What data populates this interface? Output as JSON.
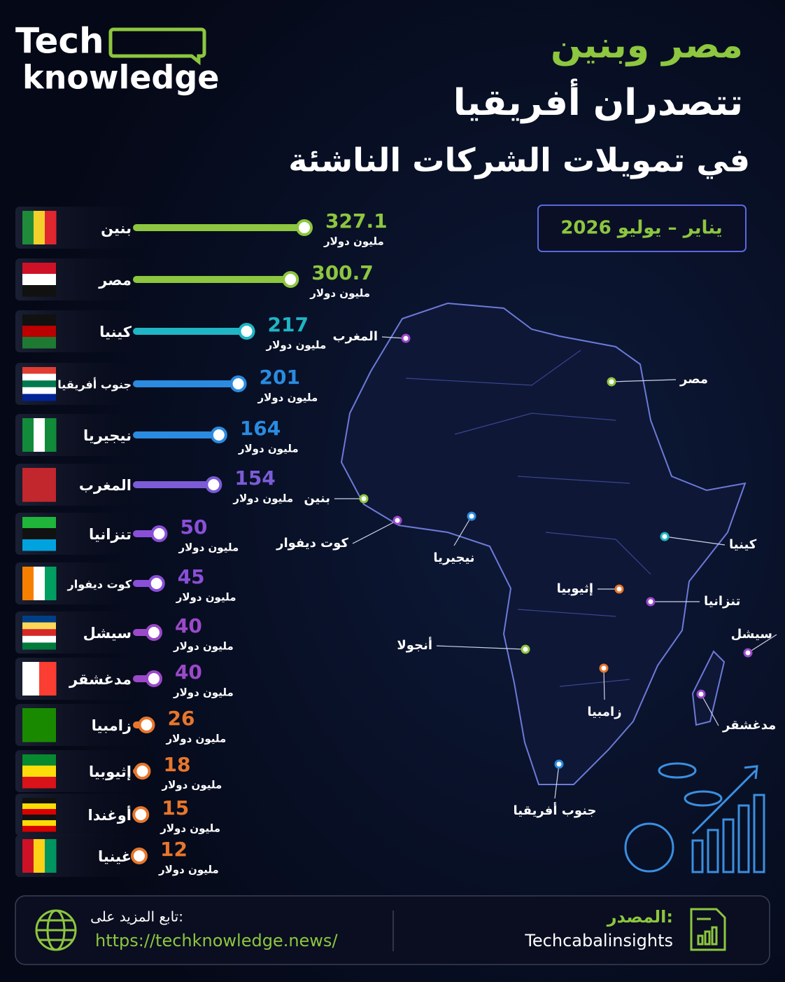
{
  "chart_data": {
    "type": "lollipop",
    "logo": [
      "Tech",
      "knowledge"
    ],
    "title": [
      "مصر وبنين",
      "تتصدران أفريقيا",
      "في تمويلات الشركات الناشئة"
    ],
    "period": "يناير – يوليو 2026",
    "unit_label": "مليون دولار",
    "categories": [
      "بنين",
      "مصر",
      "كينيا",
      "جنوب أفريقيا",
      "نيجيريا",
      "المغرب",
      "تنزانيا",
      "كوت ديفوار",
      "سيشل",
      "مدغشقر",
      "زامبيا",
      "إثيوبيا",
      "أوغندا",
      "غينيا"
    ],
    "values": [
      327.1,
      300.7,
      217,
      201,
      164,
      154,
      50,
      45,
      40,
      40,
      26,
      18,
      15,
      12
    ],
    "colors": [
      "#8dc63f",
      "#8dc63f",
      "#1fb5c4",
      "#2a8be0",
      "#2a8be0",
      "#7b5cd6",
      "#8a4fd8",
      "#8a4fd8",
      "#9b49c9",
      "#9b49c9",
      "#e8762c",
      "#e8762c",
      "#e8762c",
      "#e8762c"
    ],
    "map_labels": [
      "المغرب",
      "مصر",
      "بنين",
      "كوت ديفوار",
      "نيجيريا",
      "كينيا",
      "إثيوبيا",
      "تنزانيا",
      "سيشل",
      "أنجولا",
      "مدغشقر",
      "زامبيا",
      "جنوب أفريقيا"
    ],
    "footer": {
      "follow": "تابع المزيد على:",
      "url": "https://techknowledge.news/",
      "source_label": "المصدر:",
      "source": "Techcabalinsights"
    }
  }
}
